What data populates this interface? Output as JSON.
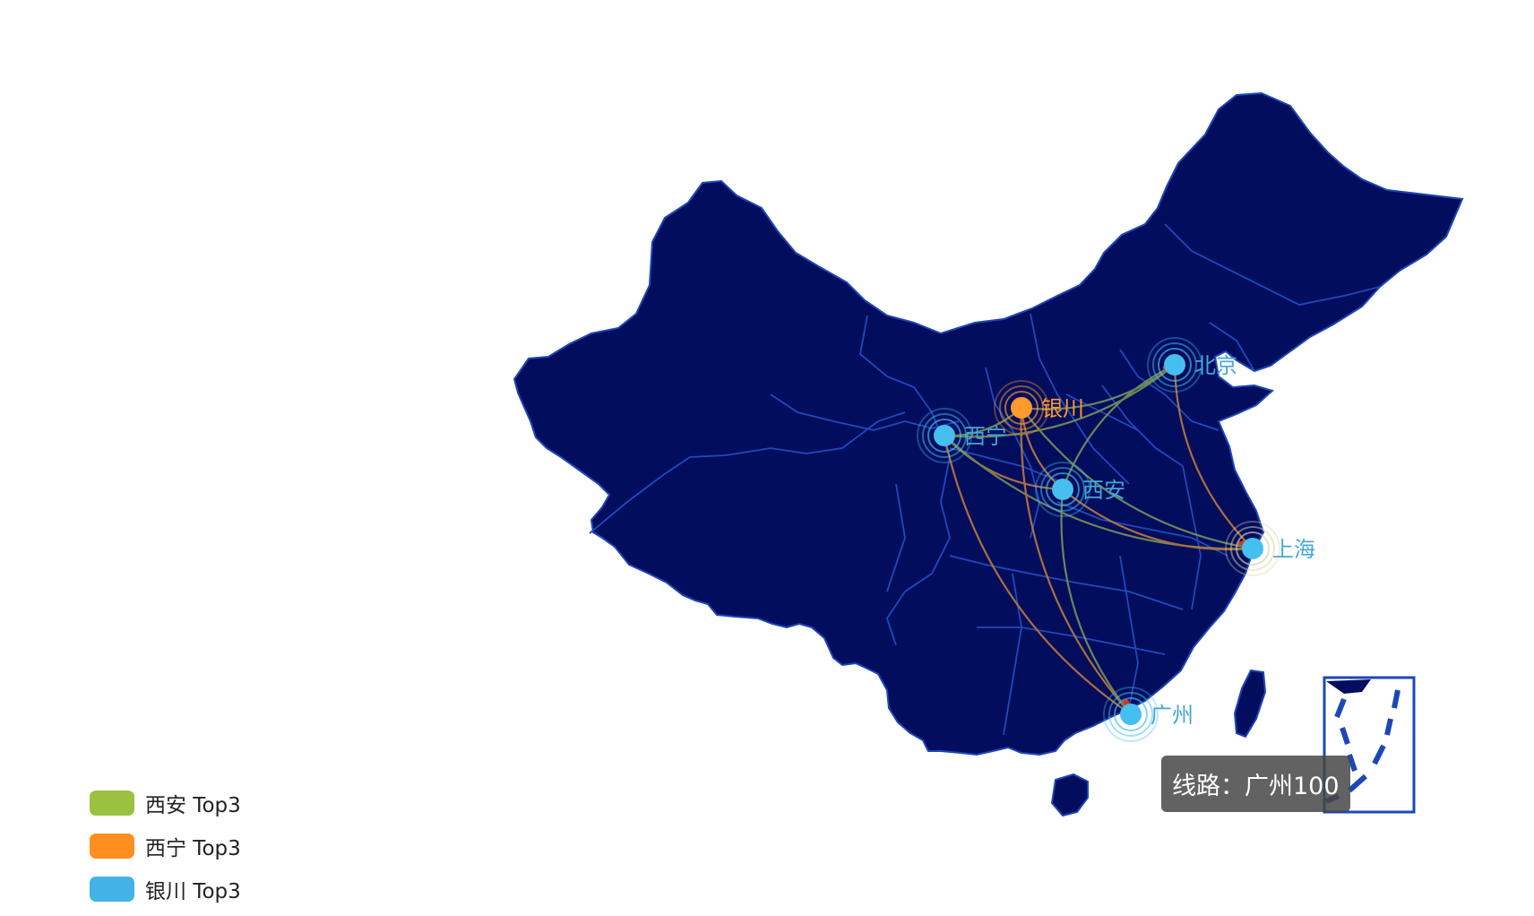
{
  "colors": {
    "land": "#030d5e",
    "border": "#1d47b8",
    "legend_xian": "#9bc23f",
    "legend_xining": "#ff8f1f",
    "legend_yinchuan": "#43b2e6",
    "label": "#45a7d6",
    "label_yinchuan": "#ff9a2e"
  },
  "cities": [
    {
      "key": "beijing",
      "name": "北京"
    },
    {
      "key": "yinchuan",
      "name": "银川"
    },
    {
      "key": "xining",
      "name": "西宁"
    },
    {
      "key": "xian",
      "name": "西安"
    },
    {
      "key": "shanghai",
      "name": "上海"
    },
    {
      "key": "guangzhou",
      "name": "广州"
    }
  ],
  "legend": [
    {
      "key": "xian",
      "label": "西安 Top3"
    },
    {
      "key": "xining",
      "label": "西宁 Top3"
    },
    {
      "key": "yinchuan",
      "label": "银川 Top3"
    }
  ],
  "tooltip": {
    "text": "线路：广州100"
  }
}
